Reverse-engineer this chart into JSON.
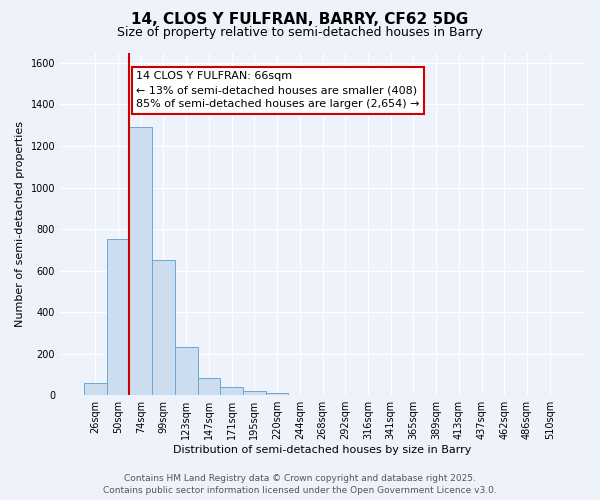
{
  "title": "14, CLOS Y FULFRAN, BARRY, CF62 5DG",
  "subtitle": "Size of property relative to semi-detached houses in Barry",
  "xlabel": "Distribution of semi-detached houses by size in Barry",
  "ylabel": "Number of semi-detached properties",
  "bar_values": [
    60,
    750,
    1290,
    650,
    230,
    85,
    40,
    20,
    10,
    0,
    0,
    0,
    0,
    0,
    0,
    0,
    0,
    0,
    0,
    0,
    0
  ],
  "categories": [
    "26sqm",
    "50sqm",
    "74sqm",
    "99sqm",
    "123sqm",
    "147sqm",
    "171sqm",
    "195sqm",
    "220sqm",
    "244sqm",
    "268sqm",
    "292sqm",
    "316sqm",
    "341sqm",
    "365sqm",
    "389sqm",
    "413sqm",
    "437sqm",
    "462sqm",
    "486sqm",
    "510sqm"
  ],
  "ylim": [
    0,
    1650
  ],
  "yticks": [
    0,
    200,
    400,
    600,
    800,
    1000,
    1200,
    1400,
    1600
  ],
  "bar_color": "#ccddf0",
  "bar_edge_color": "#6aaad4",
  "vline_x_index": 2,
  "vline_color": "#cc0000",
  "annotation_title": "14 CLOS Y FULFRAN: 66sqm",
  "annotation_line1": "← 13% of semi-detached houses are smaller (408)",
  "annotation_line2": "85% of semi-detached houses are larger (2,654) →",
  "annotation_box_color": "#ffffff",
  "annotation_box_edge": "#cc0000",
  "footnote1": "Contains HM Land Registry data © Crown copyright and database right 2025.",
  "footnote2": "Contains public sector information licensed under the Open Government Licence v3.0.",
  "background_color": "#eef2fa",
  "grid_color": "#ffffff",
  "title_fontsize": 11,
  "subtitle_fontsize": 9,
  "axis_label_fontsize": 8,
  "tick_fontsize": 7,
  "annotation_fontsize": 8,
  "footnote_fontsize": 6.5
}
